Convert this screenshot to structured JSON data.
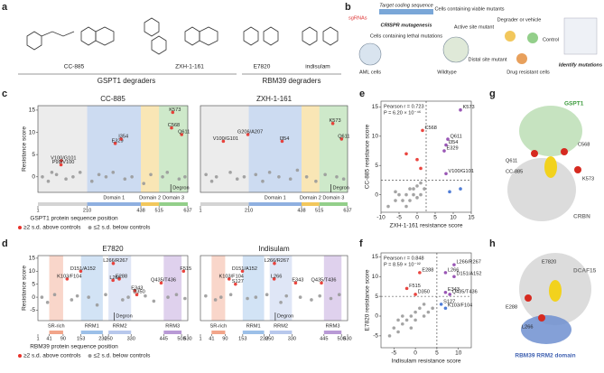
{
  "panel_letters": [
    "a",
    "b",
    "c",
    "d",
    "e",
    "f",
    "g",
    "h"
  ],
  "panel_a": {
    "compounds": [
      "CC-885",
      "ZXH-1-161",
      "E7820",
      "indisulam"
    ],
    "groups": [
      "GSPT1 degraders",
      "RBM39 degraders"
    ]
  },
  "panel_b": {
    "texts": [
      "sgRNAs",
      "Target coding sequence",
      "CRISPR mutagenesis",
      "Cells containing lethal mutations",
      "Cells containing viable mutants",
      "AML cells",
      "Wildtype",
      "Active site mutant",
      "Distal site mutant",
      "Degrader or vehicle",
      "Control",
      "Drug resistant cells",
      "Identify mutations"
    ]
  },
  "panel_g": {
    "labels": [
      "GSPT1",
      "C568",
      "Q611",
      "CC-885",
      "K573",
      "CRBN"
    ]
  },
  "panel_h": {
    "labels": [
      "E7820",
      "DCAF15",
      "E288",
      "L266",
      "RBM39 RRM2 domain"
    ]
  },
  "chart_data": [
    {
      "type": "scatter",
      "title": "CC-885",
      "ylabel": "Resistance score",
      "xlabel": "GSPT1 protein sequence position",
      "xlim": [
        1,
        637
      ],
      "xticks": [
        1,
        210,
        438,
        515,
        637
      ],
      "ylim": [
        -3.5,
        16
      ],
      "yticks": [
        0,
        5,
        10,
        15
      ],
      "legend": true,
      "regions": [
        {
          "start": 1,
          "end": 210,
          "color": "#d4d4d4"
        },
        {
          "label": "Domain 1",
          "start": 210,
          "end": 438,
          "color": "#8fb0e0"
        },
        {
          "label": "Domain 2",
          "start": 438,
          "end": 515,
          "color": "#f2c75c"
        },
        {
          "label": "Domain 3",
          "start": 515,
          "end": 637,
          "color": "#93cf8a"
        }
      ],
      "degron": 565,
      "degron_label": "Degron",
      "series": [
        {
          "name": "≥2 s.d. above controls",
          "color": "#e8312a",
          "x": [
            100,
            99,
            329,
            354,
            573,
            568,
            611
          ],
          "values": [
            3.6,
            2.7,
            7.5,
            8.5,
            14.5,
            11,
            9.5
          ],
          "point_labels": [
            "V100/G101",
            "P99/V100",
            "E329",
            "I354",
            "K573",
            "C568",
            "Q611"
          ]
        },
        {
          "name": "≤2 s.d. below controls",
          "color": "#9a9a9a",
          "x": [
            20,
            45,
            60,
            80,
            120,
            150,
            180,
            230,
            260,
            290,
            320,
            370,
            400,
            450,
            480,
            530,
            550,
            600,
            625
          ],
          "values": [
            0,
            -1,
            1,
            0.5,
            -0.5,
            0,
            1,
            -1,
            0.5,
            0,
            1,
            -0.5,
            0,
            -1.5,
            0.5,
            0,
            1,
            -0.5,
            0
          ]
        }
      ]
    },
    {
      "type": "scatter",
      "title": "ZXH-1-161",
      "xlim": [
        1,
        637
      ],
      "xticks": [
        1,
        210,
        438,
        515,
        637
      ],
      "ylim": [
        -3.5,
        16
      ],
      "regions": [
        {
          "start": 1,
          "end": 210,
          "color": "#d4d4d4"
        },
        {
          "label": "Domain 1",
          "start": 210,
          "end": 438,
          "color": "#8fb0e0"
        },
        {
          "label": "Domain 2",
          "start": 438,
          "end": 515,
          "color": "#f2c75c"
        },
        {
          "label": "Domain 3",
          "start": 515,
          "end": 637,
          "color": "#93cf8a"
        }
      ],
      "degron": 565,
      "degron_label": "Degron",
      "series": [
        {
          "color": "#e8312a",
          "x": [
            100,
            206,
            354,
            573,
            611
          ],
          "values": [
            8,
            9.5,
            8,
            12,
            8.5
          ],
          "point_labels": [
            "V100/G101",
            "G206/A207",
            "I354",
            "K573",
            "Q611"
          ]
        },
        {
          "color": "#9a9a9a",
          "x": [
            25,
            50,
            70,
            130,
            160,
            190,
            240,
            270,
            300,
            340,
            390,
            420,
            460,
            500,
            540,
            590,
            620
          ],
          "values": [
            0.5,
            -1,
            0,
            1,
            -0.5,
            0,
            0.5,
            -1,
            1,
            0,
            -0.5,
            1.5,
            0,
            -1,
            0.5,
            0,
            -0.5
          ]
        }
      ]
    },
    {
      "type": "scatter",
      "title": "E7820",
      "ylabel": "Resistance score",
      "xlabel": "RBM39 protein sequence position",
      "xlim": [
        1,
        530
      ],
      "xticks": [
        1,
        41,
        90,
        153,
        230,
        250,
        330,
        445,
        508,
        530
      ],
      "ylim": [
        -9,
        16
      ],
      "yticks": [
        -5,
        0,
        5,
        10,
        15
      ],
      "legend": true,
      "regions": [
        {
          "label": "SR-rich",
          "start": 41,
          "end": 90,
          "color": "#f2a58a"
        },
        {
          "label": "RRM1",
          "start": 153,
          "end": 230,
          "color": "#9cc0e8"
        },
        {
          "label": "RRM2",
          "start": 250,
          "end": 330,
          "color": "#b8c8ec"
        },
        {
          "label": "RRM3",
          "start": 445,
          "end": 508,
          "color": "#b99ad6"
        }
      ],
      "degron": 270,
      "degron_label": "Degron",
      "series": [
        {
          "name": "≥2 s.d. above controls",
          "color": "#e8312a",
          "x": [
            104,
            152,
            266,
            267,
            288,
            343,
            350,
            436,
            515
          ],
          "values": [
            7,
            10,
            6.5,
            13,
            7,
            2.5,
            1,
            5.5,
            10
          ],
          "point_labels": [
            "K103/F104",
            "D151/A152",
            "L266",
            "L266/R267",
            "E288",
            "E343",
            "D350",
            "Q435/T436",
            "F515"
          ]
        },
        {
          "name": "≤2 s.d. below controls",
          "color": "#9a9a9a",
          "x": [
            15,
            35,
            60,
            120,
            140,
            180,
            210,
            240,
            300,
            320,
            380,
            410,
            460,
            490,
            520
          ],
          "values": [
            0,
            -2,
            1,
            -1,
            0.5,
            0,
            -3,
            1,
            -1,
            0,
            0.5,
            -1.5,
            0,
            1,
            -0.5
          ]
        }
      ]
    },
    {
      "type": "scatter",
      "title": "Indisulam",
      "xlim": [
        1,
        530
      ],
      "xticks": [
        1,
        41,
        90,
        153,
        230,
        250,
        330,
        445,
        508,
        530
      ],
      "ylim": [
        -9,
        16
      ],
      "regions": [
        {
          "label": "SR-rich",
          "start": 41,
          "end": 90,
          "color": "#f2a58a"
        },
        {
          "label": "RRM1",
          "start": 153,
          "end": 230,
          "color": "#9cc0e8"
        },
        {
          "label": "RRM2",
          "start": 250,
          "end": 330,
          "color": "#b8c8ec"
        },
        {
          "label": "RRM3",
          "start": 445,
          "end": 508,
          "color": "#b99ad6"
        }
      ],
      "degron": 270,
      "degron_label": "Degron",
      "series": [
        {
          "color": "#e8312a",
          "x": [
            104,
            152,
            127,
            267,
            266,
            343,
            436
          ],
          "values": [
            7,
            10,
            5,
            13,
            7,
            5.5,
            5.5
          ],
          "point_labels": [
            "K103/F104",
            "D151/A152",
            "S127",
            "L266/R267",
            "L266",
            "E343",
            "Q435/T436"
          ]
        },
        {
          "color": "#9a9a9a",
          "x": [
            20,
            55,
            75,
            110,
            170,
            200,
            240,
            290,
            310,
            360,
            400,
            430,
            470,
            500
          ],
          "values": [
            0.5,
            -1,
            0,
            1,
            -0.5,
            0,
            1,
            -2,
            0.5,
            0,
            -1,
            0.5,
            -0.5,
            1
          ]
        }
      ]
    },
    {
      "type": "scatter",
      "xlabel": "ZXH-1-161 resistance score",
      "ylabel": "CC-885 resistance score",
      "xlim": [
        -10,
        15
      ],
      "xticks": [
        -10,
        -5,
        0,
        5,
        10,
        15
      ],
      "ylim": [
        -3,
        16
      ],
      "yticks": [
        0,
        5,
        10,
        15
      ],
      "threshold_x": 2.5,
      "threshold_y": 2.5,
      "annotations": [
        "Pearson r = 0.723",
        "P = 6.20 × 10⁻⁴⁶"
      ],
      "series": [
        {
          "color": "#8e44ad",
          "x": [
            12,
            8.5,
            8,
            7.5,
            8
          ],
          "values": [
            14.5,
            9.5,
            8.5,
            7.5,
            3.6
          ],
          "point_labels": [
            "K573",
            "Q611",
            "I354",
            "E329",
            "V100/G101"
          ]
        },
        {
          "color": "#e8312a",
          "x": [
            1.5,
            -3,
            0,
            1
          ],
          "values": [
            11,
            7,
            6,
            4.5
          ],
          "point_labels": [
            "C568",
            null,
            null,
            null
          ]
        },
        {
          "color": "#3d6fd1",
          "x": [
            12,
            9
          ],
          "values": [
            1,
            0.5
          ]
        },
        {
          "color": "#9a9a9a",
          "x": [
            -8,
            -6,
            -5,
            -4,
            -3,
            -2,
            -2,
            -1,
            -1,
            0,
            0,
            1,
            1,
            2,
            -3,
            -6
          ],
          "values": [
            -2,
            -1,
            0,
            -1,
            0,
            1,
            -1,
            0,
            1,
            -0.5,
            1.5,
            0,
            2,
            1,
            -2,
            0.5
          ]
        }
      ]
    },
    {
      "type": "scatter",
      "xlabel": "Indisulam resistance score",
      "ylabel": "E7820 resistance score",
      "xlim": [
        -8,
        13
      ],
      "xticks": [
        -5,
        0,
        5,
        10
      ],
      "ylim": [
        -8,
        16
      ],
      "yticks": [
        -5,
        0,
        5,
        10,
        15
      ],
      "threshold_x": 5,
      "threshold_y": 5,
      "annotations": [
        "Pearson r = 0.848",
        "P = 8.59 × 10⁻⁹²"
      ],
      "series": [
        {
          "color": "#8e44ad",
          "x": [
            9,
            7,
            9,
            7,
            8
          ],
          "values": [
            13,
            11,
            10,
            6,
            5.5
          ],
          "point_labels": [
            "L266/R267",
            "L266",
            "D151/A152",
            "E343",
            "Q435/T436"
          ]
        },
        {
          "color": "#e8312a",
          "x": [
            1,
            -2,
            0
          ],
          "values": [
            11,
            7,
            5.5
          ],
          "point_labels": [
            "E288",
            "F515",
            "D350"
          ]
        },
        {
          "color": "#3d6fd1",
          "x": [
            6,
            7
          ],
          "values": [
            3,
            2
          ],
          "point_labels": [
            "S127",
            "K103/F104"
          ]
        },
        {
          "color": "#9a9a9a",
          "x": [
            -6,
            -5,
            -4,
            -3,
            -3,
            -2,
            -1,
            -1,
            0,
            0,
            1,
            2,
            2,
            3,
            -4,
            4
          ],
          "values": [
            -5,
            -3,
            -4,
            -2,
            0,
            -1,
            0,
            -3,
            1,
            -1,
            2,
            0,
            3,
            1,
            -1,
            2
          ]
        }
      ]
    }
  ]
}
